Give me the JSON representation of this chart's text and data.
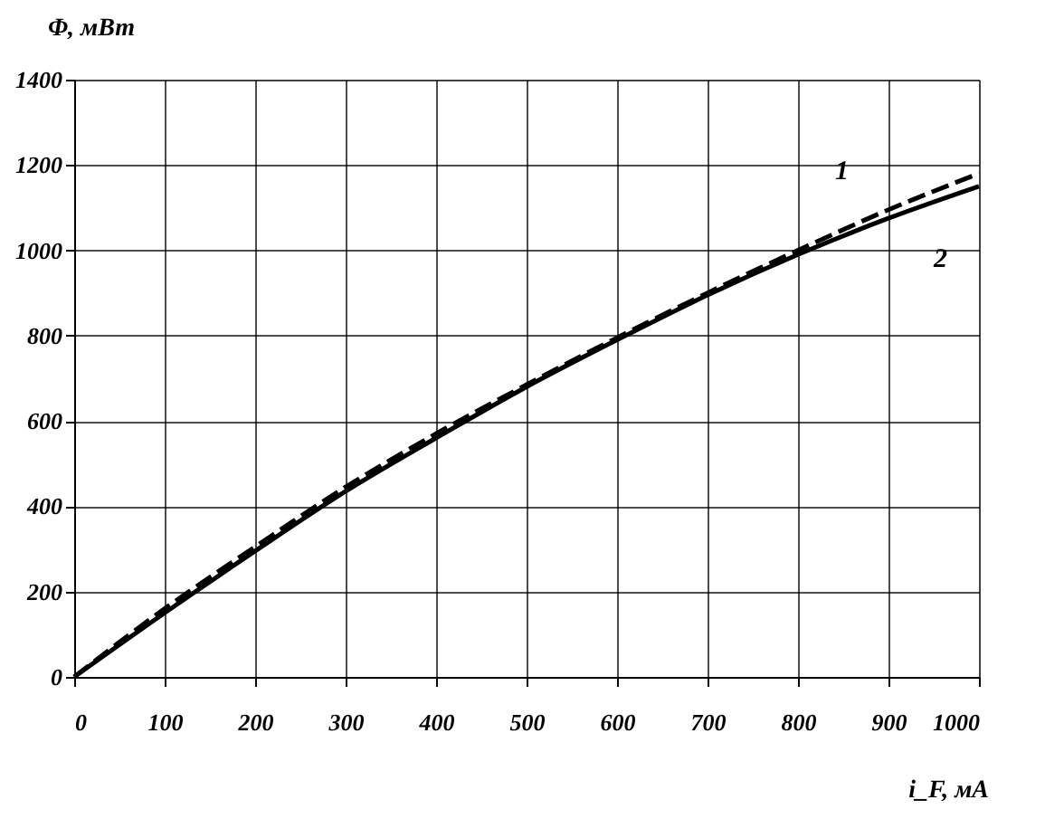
{
  "chart_data": {
    "type": "line",
    "xlabel": "i_F, мА",
    "ylabel": "Φ, мВт",
    "x": [
      0,
      100,
      200,
      300,
      400,
      500,
      600,
      700,
      800,
      900,
      1000
    ],
    "series": [
      {
        "name": "1",
        "color": "#000000",
        "line_style": "dashed",
        "values": [
          0,
          160,
          305,
          445,
          570,
          685,
          795,
          900,
          1000,
          1095,
          1180
        ]
      },
      {
        "name": "2",
        "color": "#000000",
        "line_style": "solid",
        "values": [
          0,
          150,
          295,
          435,
          560,
          680,
          790,
          895,
          990,
          1075,
          1150
        ]
      }
    ],
    "xlim": [
      0,
      1000
    ],
    "xticks": [
      0,
      100,
      200,
      300,
      400,
      500,
      600,
      700,
      800,
      900,
      1000
    ],
    "ylim": [
      0,
      1400
    ],
    "yticks": [
      0,
      200,
      400,
      600,
      800,
      1000,
      1200,
      1400
    ],
    "grid": true,
    "marker": "none"
  }
}
